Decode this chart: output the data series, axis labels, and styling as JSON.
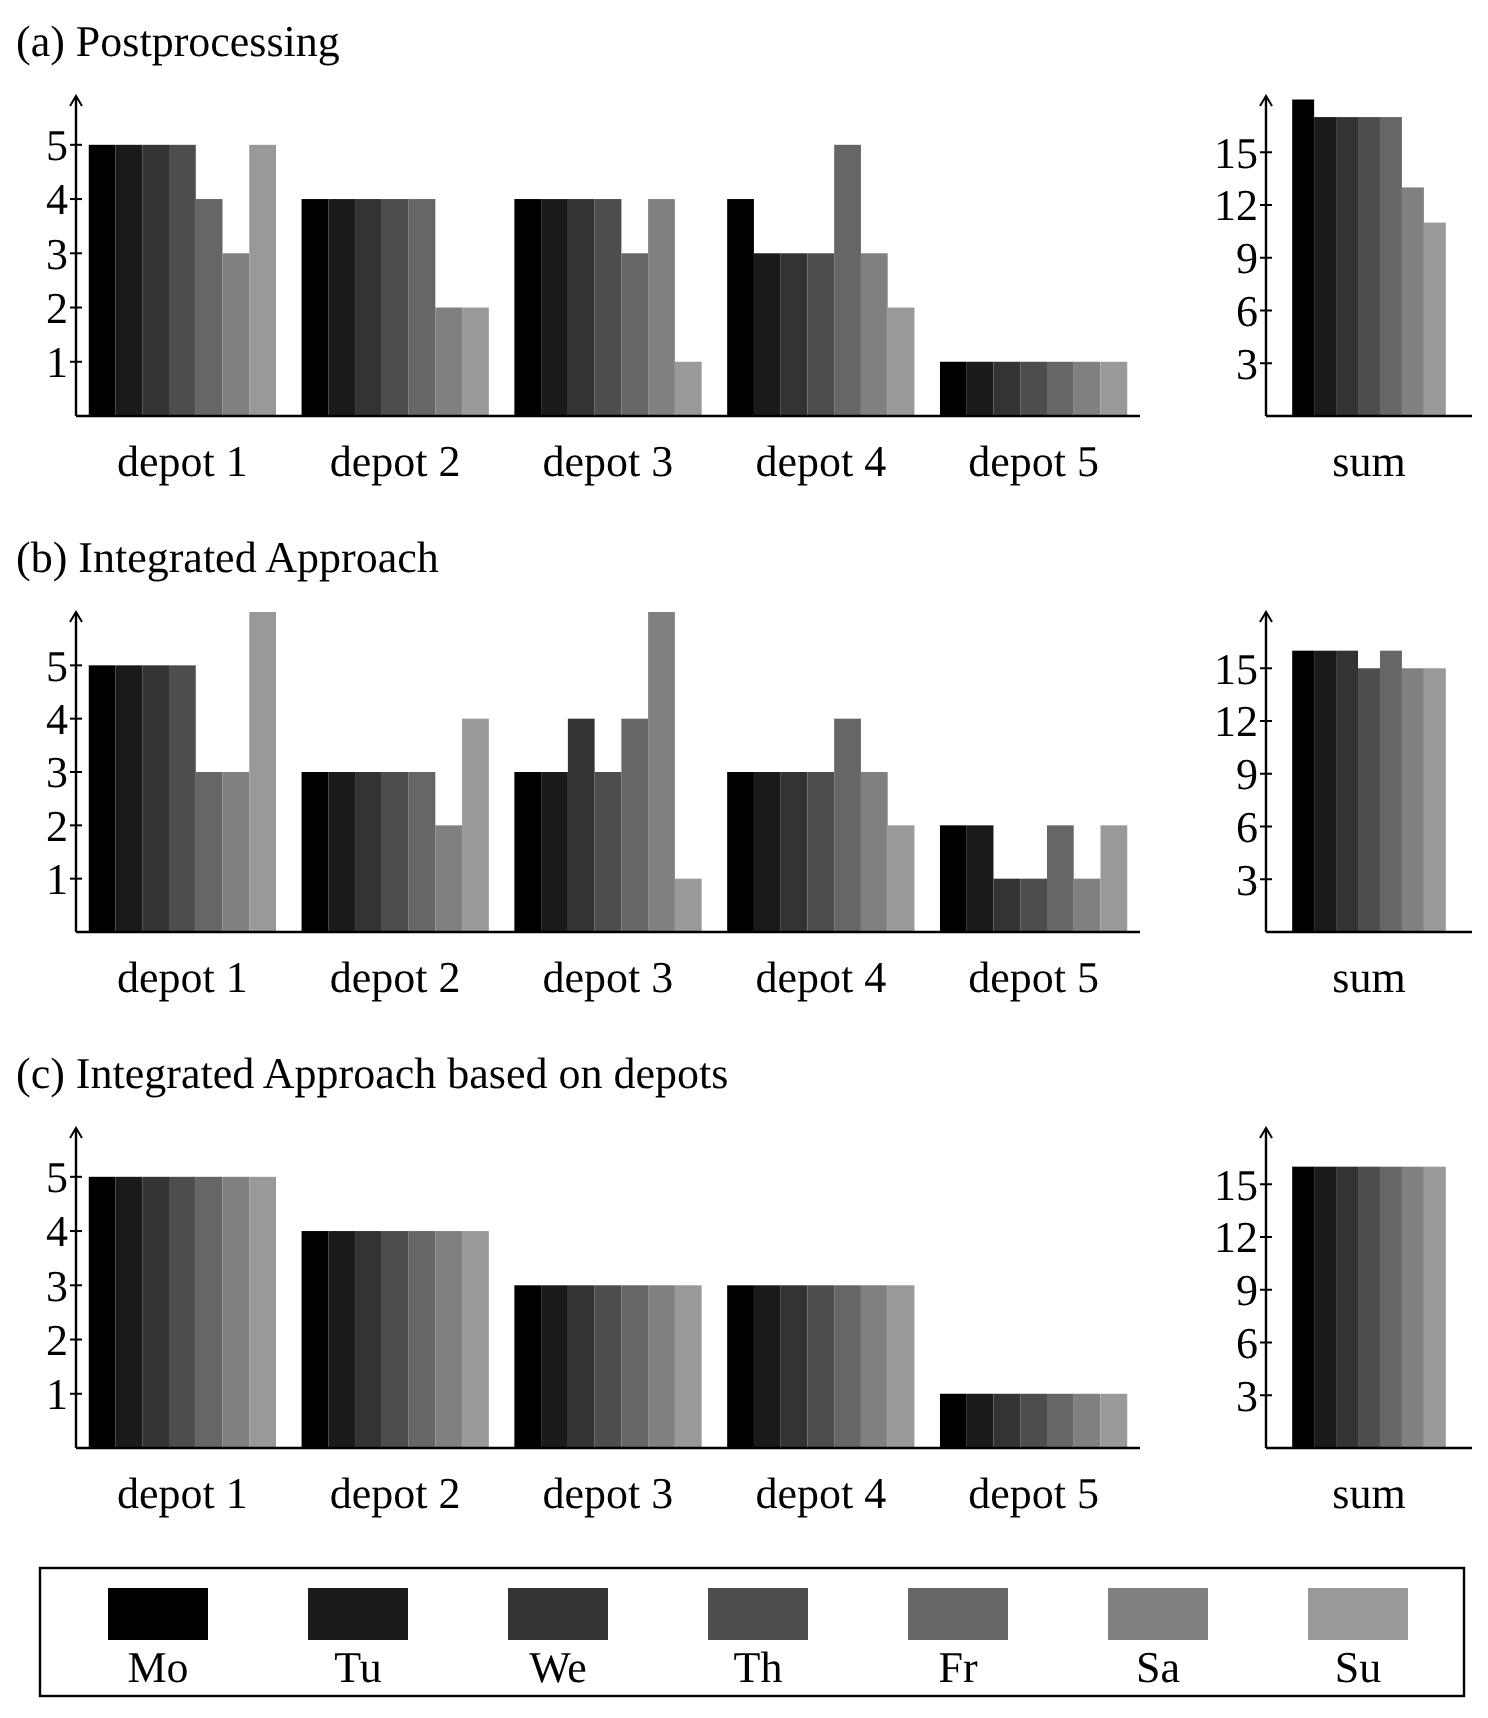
{
  "chart_data": [
    {
      "type": "bar",
      "title": "(a) Postprocessing",
      "categories": [
        "depot 1",
        "depot 2",
        "depot 3",
        "depot 4",
        "depot 5"
      ],
      "ylim": [
        0,
        5.9
      ],
      "yticks": [
        1,
        2,
        3,
        4,
        5
      ],
      "series": [
        {
          "color": "#000000",
          "values": [
            5,
            4,
            4,
            4,
            1
          ]
        },
        {
          "color": "#1a1a1a",
          "values": [
            5,
            4,
            4,
            3,
            1
          ]
        },
        {
          "color": "#333333",
          "values": [
            5,
            4,
            4,
            3,
            1
          ]
        },
        {
          "color": "#4d4d4d",
          "values": [
            5,
            4,
            4,
            3,
            1
          ]
        },
        {
          "color": "#666666",
          "values": [
            4,
            4,
            3,
            5,
            1
          ]
        },
        {
          "color": "#808080",
          "values": [
            3,
            2,
            4,
            3,
            1
          ]
        },
        {
          "color": "#999999",
          "values": [
            5,
            2,
            1,
            2,
            1
          ]
        }
      ]
    },
    {
      "type": "bar",
      "categories": [
        "sum"
      ],
      "ylim": [
        0,
        18.2
      ],
      "yticks": [
        3,
        6,
        9,
        12,
        15
      ],
      "series": [
        {
          "color": "#000000",
          "values": [
            18
          ]
        },
        {
          "color": "#1a1a1a",
          "values": [
            17
          ]
        },
        {
          "color": "#333333",
          "values": [
            17
          ]
        },
        {
          "color": "#4d4d4d",
          "values": [
            17
          ]
        },
        {
          "color": "#666666",
          "values": [
            17
          ]
        },
        {
          "color": "#808080",
          "values": [
            13
          ]
        },
        {
          "color": "#999999",
          "values": [
            11
          ]
        }
      ]
    },
    {
      "type": "bar",
      "title": "(b) Integrated Approach",
      "categories": [
        "depot 1",
        "depot 2",
        "depot 3",
        "depot 4",
        "depot 5"
      ],
      "ylim": [
        0,
        6
      ],
      "yticks": [
        1,
        2,
        3,
        4,
        5
      ],
      "series": [
        {
          "color": "#000000",
          "values": [
            5,
            3,
            3,
            3,
            2
          ]
        },
        {
          "color": "#1a1a1a",
          "values": [
            5,
            3,
            3,
            3,
            2
          ]
        },
        {
          "color": "#333333",
          "values": [
            5,
            3,
            4,
            3,
            1
          ]
        },
        {
          "color": "#4d4d4d",
          "values": [
            5,
            3,
            3,
            3,
            1
          ]
        },
        {
          "color": "#666666",
          "values": [
            3,
            3,
            4,
            4,
            2
          ]
        },
        {
          "color": "#808080",
          "values": [
            3,
            2,
            6,
            3,
            1
          ]
        },
        {
          "color": "#999999",
          "values": [
            6,
            4,
            1,
            2,
            2
          ]
        }
      ]
    },
    {
      "type": "bar",
      "categories": [
        "sum"
      ],
      "ylim": [
        0,
        18.2
      ],
      "yticks": [
        3,
        6,
        9,
        12,
        15
      ],
      "series": [
        {
          "color": "#000000",
          "values": [
            16
          ]
        },
        {
          "color": "#1a1a1a",
          "values": [
            16
          ]
        },
        {
          "color": "#333333",
          "values": [
            16
          ]
        },
        {
          "color": "#4d4d4d",
          "values": [
            15
          ]
        },
        {
          "color": "#666666",
          "values": [
            16
          ]
        },
        {
          "color": "#808080",
          "values": [
            15
          ]
        },
        {
          "color": "#999999",
          "values": [
            15
          ]
        }
      ]
    },
    {
      "type": "bar",
      "title": "(c) Integrated Approach based on depots",
      "categories": [
        "depot 1",
        "depot 2",
        "depot 3",
        "depot 4",
        "depot 5"
      ],
      "ylim": [
        0,
        5.9
      ],
      "yticks": [
        1,
        2,
        3,
        4,
        5
      ],
      "legend": "bottom",
      "series": [
        {
          "name": "Mo",
          "color": "#000000",
          "values": [
            5,
            4,
            3,
            3,
            1
          ]
        },
        {
          "name": "Tu",
          "color": "#1a1a1a",
          "values": [
            5,
            4,
            3,
            3,
            1
          ]
        },
        {
          "name": "We",
          "color": "#333333",
          "values": [
            5,
            4,
            3,
            3,
            1
          ]
        },
        {
          "name": "Th",
          "color": "#4d4d4d",
          "values": [
            5,
            4,
            3,
            3,
            1
          ]
        },
        {
          "name": "Fr",
          "color": "#666666",
          "values": [
            5,
            4,
            3,
            3,
            1
          ]
        },
        {
          "name": "Sa",
          "color": "#808080",
          "values": [
            5,
            4,
            3,
            3,
            1
          ]
        },
        {
          "name": "Su",
          "color": "#999999",
          "values": [
            5,
            4,
            3,
            3,
            1
          ]
        }
      ]
    },
    {
      "type": "bar",
      "categories": [
        "sum"
      ],
      "ylim": [
        0,
        18.2
      ],
      "yticks": [
        3,
        6,
        9,
        12,
        15
      ],
      "series": [
        {
          "color": "#000000",
          "values": [
            16
          ]
        },
        {
          "color": "#1a1a1a",
          "values": [
            16
          ]
        },
        {
          "color": "#333333",
          "values": [
            16
          ]
        },
        {
          "color": "#4d4d4d",
          "values": [
            16
          ]
        },
        {
          "color": "#666666",
          "values": [
            16
          ]
        },
        {
          "color": "#808080",
          "values": [
            16
          ]
        },
        {
          "color": "#999999",
          "values": [
            16
          ]
        }
      ]
    }
  ]
}
